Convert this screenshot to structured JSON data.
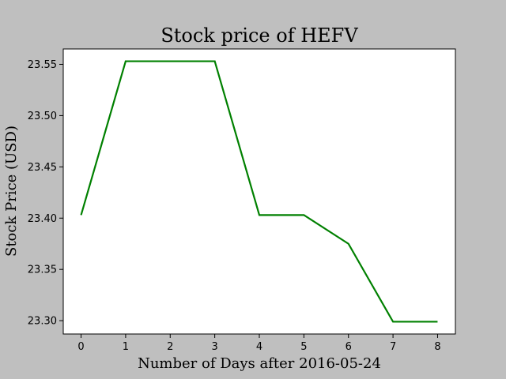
{
  "chart_data": {
    "type": "line",
    "title": "Stock price of HEFV",
    "xlabel": "Number of Days after 2016-05-24",
    "ylabel": "Stock Price (USD)",
    "x": [
      0,
      1,
      2,
      3,
      4,
      5,
      6,
      7,
      8
    ],
    "series": [
      {
        "values": [
          23.403,
          23.553,
          23.553,
          23.553,
          23.403,
          23.403,
          23.375,
          23.299,
          23.299
        ]
      }
    ],
    "xlim": [
      -0.4,
      8.4
    ],
    "ylim": [
      23.287,
      23.565
    ],
    "xticks": [
      0,
      1,
      2,
      3,
      4,
      5,
      6,
      7,
      8
    ],
    "yticks": [
      23.3,
      23.35,
      23.4,
      23.45,
      23.5,
      23.55
    ],
    "ytick_labels": [
      "23.30",
      "23.35",
      "23.40",
      "23.45",
      "23.50",
      "23.55"
    ],
    "grid": false,
    "colors": {
      "line": "#008000",
      "plot_background": "#ffffff",
      "figure_background": "#bfbfbf"
    }
  }
}
